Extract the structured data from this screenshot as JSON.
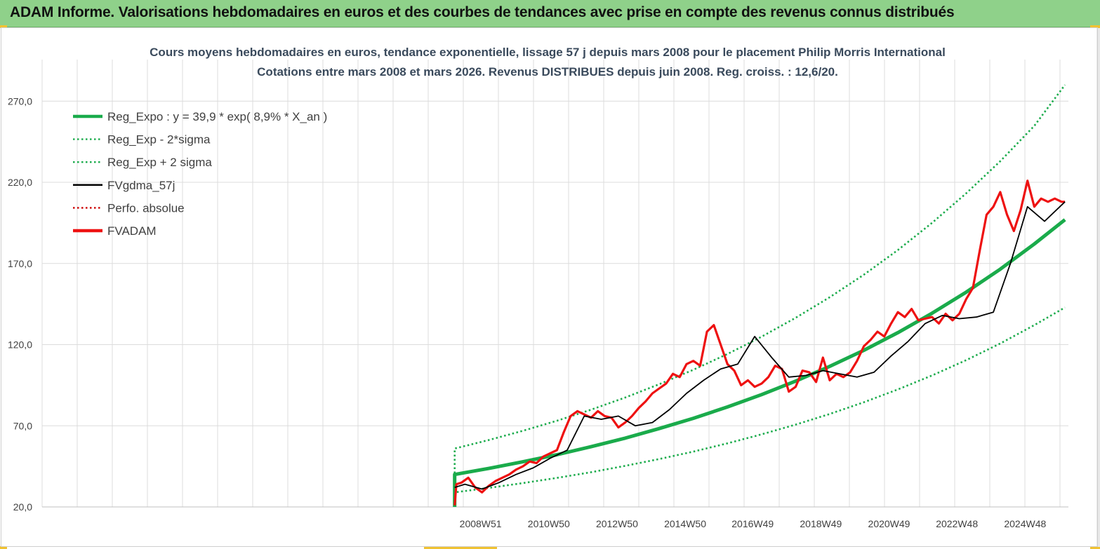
{
  "banner": {
    "title": "ADAM Informe. Valorisations hebdomadaires en euros et des courbes de tendances avec prise en compte des revenus connus distribués"
  },
  "chart_data": {
    "type": "line",
    "title": "Cours moyens hebdomadaires en euros, tendance exponentielle, lissage 57 j depuis mars 2008 pour le placement Philip Morris International",
    "subtitle": "Cotations entre mars 2008 et mars 2026. Revenus DISTRIBUES depuis juin 2008. Reg. croiss. : 12,6/20.",
    "xlabel": "",
    "ylabel": "",
    "ylim": [
      20,
      290
    ],
    "yticks": [
      20,
      70,
      120,
      170,
      220,
      270
    ],
    "ytick_labels": [
      "20,0",
      "70,0",
      "120,0",
      "170,0",
      "220,0",
      "270,0"
    ],
    "xlim": [
      1996.1,
      2026.2
    ],
    "xticks": [
      2008.96,
      2010.96,
      2012.96,
      2014.96,
      2016.94,
      2018.94,
      2020.94,
      2022.93,
      2024.93
    ],
    "xtick_labels": [
      "2008W51",
      "2010W50",
      "2012W50",
      "2014W50",
      "2016W49",
      "2018W49",
      "2020W49",
      "2022W48",
      "2024W48"
    ],
    "grid": true,
    "legend_position": "top-left",
    "colors": {
      "reg": "#1aab4b",
      "fv57": "#000000",
      "fvadam": "#ee1111",
      "perfo": "#cc0000"
    },
    "series": [
      {
        "name": "Reg_Expo : y = 39,9 * exp( 8,9% *  X_an )",
        "style": "thick-solid",
        "color": "#1aab4b",
        "x": [
          2008.2,
          2009.2,
          2010.2,
          2011.2,
          2012.2,
          2013.2,
          2014.2,
          2015.2,
          2016.2,
          2017.2,
          2018.2,
          2019.2,
          2020.2,
          2021.2,
          2022.2,
          2023.2,
          2024.2,
          2025.2,
          2026.1
        ],
        "y": [
          40,
          43.7,
          47.8,
          52.2,
          57.1,
          62.4,
          68.3,
          74.6,
          81.6,
          89.2,
          97.5,
          106.6,
          116.5,
          127.4,
          139.3,
          152.3,
          166.5,
          182.0,
          197.0
        ]
      },
      {
        "name": "Reg_Exp - 2*sigma",
        "style": "dotted",
        "color": "#1aab4b",
        "x": [
          2008.2,
          2009.2,
          2010.2,
          2011.2,
          2012.2,
          2013.2,
          2014.2,
          2015.2,
          2016.2,
          2017.2,
          2018.2,
          2019.2,
          2020.2,
          2021.2,
          2022.2,
          2023.2,
          2024.2,
          2025.2,
          2026.1
        ],
        "y": [
          29,
          31.7,
          34.7,
          37.9,
          41.4,
          45.3,
          49.5,
          54.1,
          59.2,
          64.7,
          70.7,
          77.3,
          84.5,
          92.4,
          101.0,
          110.4,
          120.7,
          132.0,
          142.9
        ]
      },
      {
        "name": "Reg_Exp + 2 sigma",
        "style": "dotted",
        "color": "#1aab4b",
        "x": [
          2008.2,
          2009.2,
          2010.2,
          2011.2,
          2012.2,
          2013.2,
          2014.2,
          2015.2,
          2016.2,
          2017.2,
          2018.2,
          2019.2,
          2020.2,
          2021.2,
          2022.2,
          2023.2,
          2024.2,
          2025.2,
          2026.1
        ],
        "y": [
          56,
          61.2,
          66.9,
          73.1,
          79.9,
          87.4,
          95.6,
          104.5,
          114.2,
          124.9,
          136.5,
          149.2,
          163.1,
          178.3,
          195.0,
          213.2,
          233.0,
          254.8,
          280.0
        ]
      },
      {
        "name": "FVgdma_57j",
        "style": "solid",
        "color": "#000000",
        "x": [
          2008.2,
          2008.5,
          2009.0,
          2009.5,
          2010.0,
          2010.5,
          2011.0,
          2011.5,
          2012.0,
          2012.5,
          2013.0,
          2013.5,
          2014.0,
          2014.5,
          2015.0,
          2015.5,
          2016.0,
          2016.5,
          2017.0,
          2017.5,
          2018.0,
          2018.5,
          2019.0,
          2019.5,
          2020.0,
          2020.5,
          2021.0,
          2021.5,
          2022.0,
          2022.5,
          2023.0,
          2023.5,
          2024.0,
          2024.5,
          2025.0,
          2025.5,
          2026.1
        ],
        "y": [
          32,
          34,
          31,
          35,
          40,
          44,
          50,
          55,
          76,
          74,
          76,
          70,
          72,
          80,
          90,
          98,
          105,
          108,
          125,
          112,
          100,
          101,
          104,
          102,
          100,
          103,
          113,
          122,
          133,
          138,
          136,
          137,
          140,
          170,
          205,
          196,
          208
        ]
      },
      {
        "name": "Perfo. absolue",
        "style": "dotted",
        "color": "#cc0000",
        "x": [],
        "y": []
      },
      {
        "name": "FVADAM",
        "style": "thick-solid",
        "color": "#ee1111",
        "x": [
          2008.2,
          2008.25,
          2008.4,
          2008.6,
          2008.8,
          2009.0,
          2009.2,
          2009.4,
          2009.6,
          2009.8,
          2010.0,
          2010.2,
          2010.4,
          2010.6,
          2010.8,
          2011.0,
          2011.2,
          2011.4,
          2011.6,
          2011.8,
          2012.0,
          2012.2,
          2012.4,
          2012.6,
          2012.8,
          2013.0,
          2013.2,
          2013.4,
          2013.6,
          2013.8,
          2014.0,
          2014.2,
          2014.4,
          2014.6,
          2014.8,
          2015.0,
          2015.2,
          2015.4,
          2015.6,
          2015.8,
          2016.0,
          2016.2,
          2016.4,
          2016.6,
          2016.8,
          2017.0,
          2017.2,
          2017.4,
          2017.6,
          2017.8,
          2018.0,
          2018.2,
          2018.4,
          2018.6,
          2018.8,
          2019.0,
          2019.2,
          2019.4,
          2019.6,
          2019.8,
          2020.0,
          2020.2,
          2020.4,
          2020.6,
          2020.8,
          2021.0,
          2021.2,
          2021.4,
          2021.6,
          2021.8,
          2022.0,
          2022.2,
          2022.4,
          2022.6,
          2022.8,
          2023.0,
          2023.2,
          2023.4,
          2023.6,
          2023.8,
          2024.0,
          2024.2,
          2024.4,
          2024.6,
          2024.8,
          2025.0,
          2025.2,
          2025.4,
          2025.6,
          2025.8,
          2026.0,
          2026.1
        ],
        "y": [
          21,
          34,
          35,
          38,
          32,
          29,
          33,
          36,
          38,
          40,
          43,
          45,
          48,
          47,
          51,
          53,
          55,
          66,
          76,
          79,
          77,
          75,
          79,
          76,
          75,
          69,
          72,
          76,
          81,
          85,
          90,
          93,
          96,
          102,
          100,
          108,
          110,
          107,
          128,
          132,
          120,
          108,
          104,
          95,
          98,
          94,
          96,
          100,
          107,
          105,
          91,
          94,
          104,
          103,
          97,
          112,
          98,
          102,
          100,
          103,
          110,
          119,
          123,
          128,
          125,
          133,
          140,
          137,
          142,
          135,
          136,
          137,
          133,
          139,
          135,
          139,
          148,
          155,
          178,
          200,
          205,
          214,
          200,
          190,
          203,
          221,
          205,
          210,
          208,
          210,
          208,
          208
        ]
      }
    ]
  }
}
